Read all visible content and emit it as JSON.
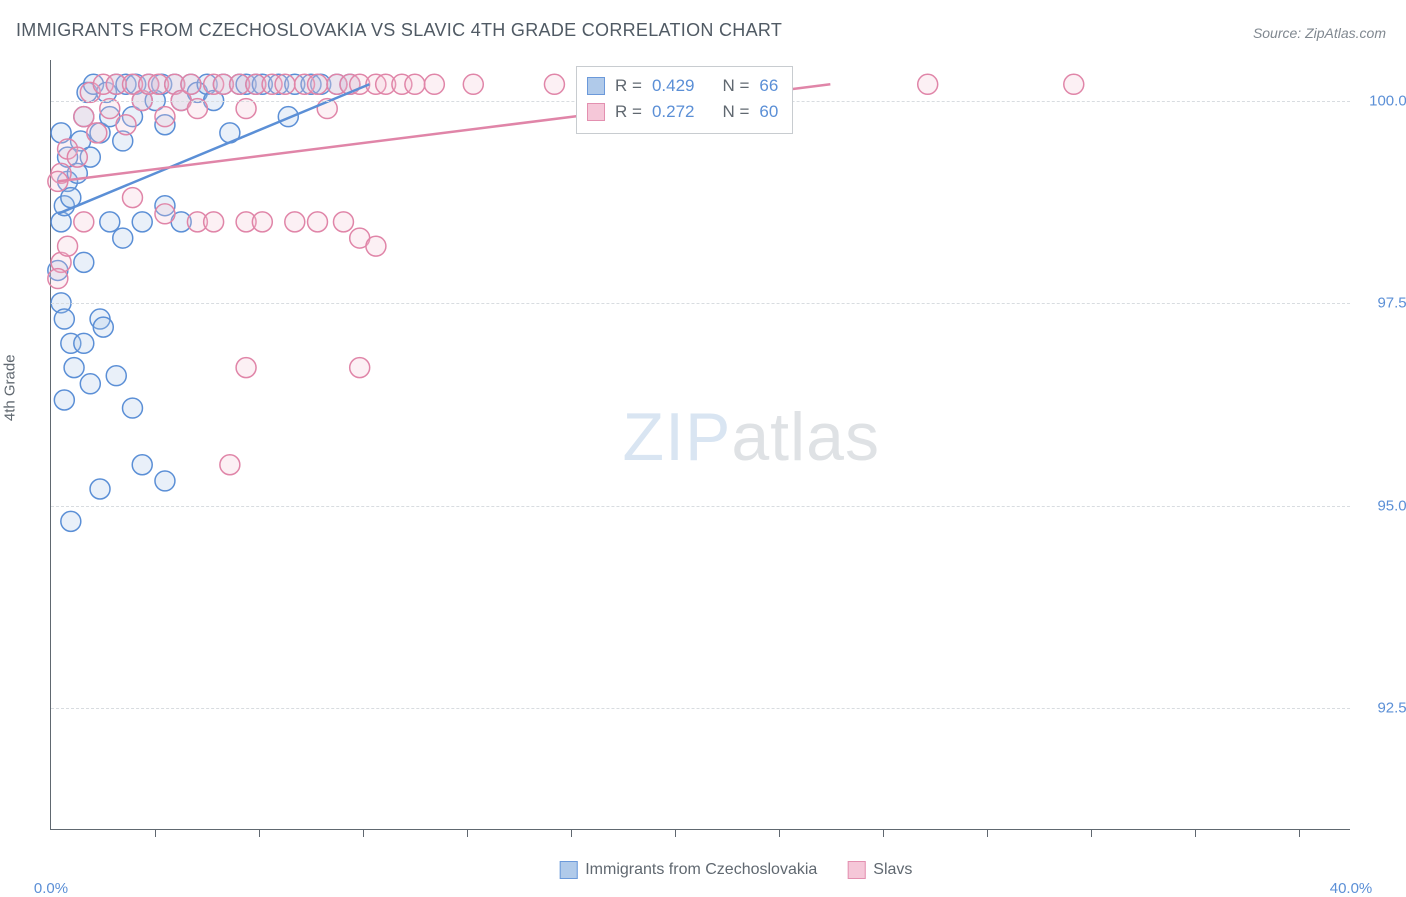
{
  "title": "IMMIGRANTS FROM CZECHOSLOVAKIA VS SLAVIC 4TH GRADE CORRELATION CHART",
  "source": "Source: ZipAtlas.com",
  "ylabel": "4th Grade",
  "watermark_zip": "ZIP",
  "watermark_atlas": "atlas",
  "chart": {
    "type": "scatter",
    "xlim": [
      0,
      40
    ],
    "ylim": [
      91,
      100.5
    ],
    "x_ticks": [
      0,
      40
    ],
    "x_tick_labels": [
      "0.0%",
      "40.0%"
    ],
    "x_minor_ticks": [
      3.2,
      6.4,
      9.6,
      12.8,
      16,
      19.2,
      22.4,
      25.6,
      28.8,
      32,
      35.2,
      38.4
    ],
    "y_ticks": [
      92.5,
      95.0,
      97.5,
      100.0
    ],
    "y_tick_labels": [
      "92.5%",
      "95.0%",
      "97.5%",
      "100.0%"
    ],
    "background_color": "#ffffff",
    "grid_color": "#d8dce0",
    "axis_color": "#606870",
    "label_color": "#5b8fd6",
    "marker_radius": 10,
    "marker_stroke_width": 1.5,
    "marker_fill_opacity": 0.25,
    "trend_line_width": 2.5
  },
  "series": [
    {
      "name": "Immigrants from Czechoslovakia",
      "color_stroke": "#5b8fd6",
      "color_fill": "#a8c5e8",
      "R": "0.429",
      "N": "66",
      "trend": {
        "x1": 0.2,
        "y1": 98.6,
        "x2": 9.8,
        "y2": 100.2
      },
      "points": [
        [
          0.3,
          98.5
        ],
        [
          0.4,
          98.7
        ],
        [
          0.5,
          99.0
        ],
        [
          0.6,
          98.8
        ],
        [
          0.5,
          99.3
        ],
        [
          0.8,
          99.1
        ],
        [
          0.9,
          99.5
        ],
        [
          1.0,
          99.8
        ],
        [
          1.1,
          100.1
        ],
        [
          1.2,
          99.3
        ],
        [
          1.3,
          100.2
        ],
        [
          1.5,
          99.6
        ],
        [
          1.7,
          100.1
        ],
        [
          1.8,
          99.8
        ],
        [
          2.0,
          100.2
        ],
        [
          2.2,
          99.5
        ],
        [
          2.3,
          100.2
        ],
        [
          2.5,
          99.8
        ],
        [
          2.6,
          100.2
        ],
        [
          2.8,
          100.0
        ],
        [
          3.0,
          100.2
        ],
        [
          3.2,
          100.0
        ],
        [
          3.4,
          100.2
        ],
        [
          3.5,
          99.7
        ],
        [
          3.8,
          100.2
        ],
        [
          4.0,
          100.0
        ],
        [
          4.3,
          100.2
        ],
        [
          4.5,
          100.1
        ],
        [
          4.8,
          100.2
        ],
        [
          5.0,
          100.0
        ],
        [
          5.3,
          100.2
        ],
        [
          5.5,
          99.6
        ],
        [
          5.8,
          100.2
        ],
        [
          6.0,
          100.2
        ],
        [
          6.3,
          100.2
        ],
        [
          6.5,
          100.2
        ],
        [
          7.0,
          100.2
        ],
        [
          7.3,
          99.8
        ],
        [
          7.5,
          100.2
        ],
        [
          8.0,
          100.2
        ],
        [
          8.3,
          100.2
        ],
        [
          8.8,
          100.2
        ],
        [
          9.2,
          100.2
        ],
        [
          0.3,
          97.5
        ],
        [
          0.4,
          97.3
        ],
        [
          0.6,
          97.0
        ],
        [
          1.5,
          97.3
        ],
        [
          1.6,
          97.2
        ],
        [
          1.0,
          97.0
        ],
        [
          0.7,
          96.7
        ],
        [
          1.2,
          96.5
        ],
        [
          0.4,
          96.3
        ],
        [
          2.0,
          96.6
        ],
        [
          2.5,
          96.2
        ],
        [
          2.8,
          95.5
        ],
        [
          3.5,
          95.3
        ],
        [
          1.5,
          95.2
        ],
        [
          0.6,
          94.8
        ],
        [
          1.0,
          98.0
        ],
        [
          1.8,
          98.5
        ],
        [
          2.2,
          98.3
        ],
        [
          2.8,
          98.5
        ],
        [
          3.5,
          98.7
        ],
        [
          4.0,
          98.5
        ],
        [
          0.2,
          97.9
        ],
        [
          0.3,
          99.6
        ]
      ]
    },
    {
      "name": "Slavs",
      "color_stroke": "#e085a8",
      "color_fill": "#f4c2d4",
      "R": "0.272",
      "N": "60",
      "trend": {
        "x1": 0.2,
        "y1": 99.0,
        "x2": 24.0,
        "y2": 100.2
      },
      "points": [
        [
          0.3,
          99.1
        ],
        [
          0.5,
          99.4
        ],
        [
          0.8,
          99.3
        ],
        [
          1.0,
          99.8
        ],
        [
          1.2,
          100.1
        ],
        [
          1.4,
          99.6
        ],
        [
          1.6,
          100.2
        ],
        [
          1.8,
          99.9
        ],
        [
          2.0,
          100.2
        ],
        [
          2.3,
          99.7
        ],
        [
          2.5,
          100.2
        ],
        [
          2.8,
          100.0
        ],
        [
          3.0,
          100.2
        ],
        [
          3.3,
          100.2
        ],
        [
          3.5,
          99.8
        ],
        [
          3.8,
          100.2
        ],
        [
          4.0,
          100.0
        ],
        [
          4.3,
          100.2
        ],
        [
          4.5,
          99.9
        ],
        [
          5.0,
          100.2
        ],
        [
          5.3,
          100.2
        ],
        [
          5.8,
          100.2
        ],
        [
          6.0,
          99.9
        ],
        [
          6.3,
          100.2
        ],
        [
          6.8,
          100.2
        ],
        [
          7.2,
          100.2
        ],
        [
          7.8,
          100.2
        ],
        [
          8.2,
          100.2
        ],
        [
          8.5,
          99.9
        ],
        [
          8.8,
          100.2
        ],
        [
          9.2,
          100.2
        ],
        [
          9.5,
          100.2
        ],
        [
          10.0,
          100.2
        ],
        [
          10.3,
          100.2
        ],
        [
          10.8,
          100.2
        ],
        [
          11.2,
          100.2
        ],
        [
          11.8,
          100.2
        ],
        [
          13.0,
          100.2
        ],
        [
          15.5,
          100.2
        ],
        [
          27.0,
          100.2
        ],
        [
          31.5,
          100.2
        ],
        [
          0.3,
          98.0
        ],
        [
          0.5,
          98.2
        ],
        [
          1.0,
          98.5
        ],
        [
          2.5,
          98.8
        ],
        [
          3.5,
          98.6
        ],
        [
          4.5,
          98.5
        ],
        [
          5.0,
          98.5
        ],
        [
          6.0,
          98.5
        ],
        [
          6.5,
          98.5
        ],
        [
          7.5,
          98.5
        ],
        [
          8.2,
          98.5
        ],
        [
          9.0,
          98.5
        ],
        [
          9.5,
          98.3
        ],
        [
          5.5,
          95.5
        ],
        [
          6.0,
          96.7
        ],
        [
          9.5,
          96.7
        ],
        [
          10.0,
          98.2
        ],
        [
          0.2,
          97.8
        ],
        [
          0.2,
          99.0
        ]
      ]
    }
  ],
  "stats_legend": {
    "R_label": "R =",
    "N_label": "N ="
  },
  "bottom_legend": {
    "series1_label": "Immigrants from Czechoslovakia",
    "series2_label": "Slavs"
  }
}
